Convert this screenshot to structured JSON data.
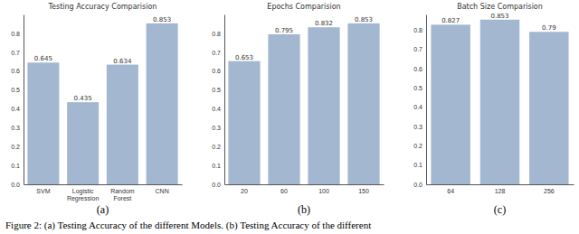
{
  "chart_data": [
    {
      "type": "bar",
      "title": "Testing Accuracy Comparision",
      "label": "(a)",
      "categories": [
        "SVM",
        "Logistic Regression",
        "Random Forest",
        "CNN"
      ],
      "values": [
        0.645,
        0.435,
        0.634,
        0.853
      ],
      "color": "#a3b8d0",
      "ylim": [
        0,
        0.9
      ],
      "yticks": [
        {
          "value": 0,
          "label": "0.0"
        },
        0.1,
        0.2,
        0.3,
        0.4,
        0.5,
        0.6,
        0.7,
        0.8
      ],
      "grid": false,
      "data_labels": true
    },
    {
      "type": "bar",
      "title": "Epochs Comparision",
      "label": "(b)",
      "categories": [
        "20",
        "60",
        "100",
        "150"
      ],
      "values": [
        0.653,
        0.795,
        0.832,
        0.853
      ],
      "color": "#a3b8d0",
      "ylim": [
        0,
        0.9
      ],
      "yticks": [
        {
          "value": 0,
          "label": "0.0"
        },
        0.1,
        0.2,
        0.3,
        0.4,
        0.5,
        0.6,
        0.7,
        0.8
      ],
      "grid": false,
      "data_labels": true
    },
    {
      "type": "bar",
      "title": "Batch Size Comparision",
      "label": "(c)",
      "categories": [
        "64",
        "128",
        "256"
      ],
      "values": [
        0.827,
        0.853,
        0.79
      ],
      "color": "#a3b8d0",
      "ylim": [
        0,
        0.88
      ],
      "yticks": [
        {
          "value": 0,
          "label": "0.0"
        },
        0.1,
        0.2,
        0.3,
        0.4,
        0.5,
        0.6,
        0.7,
        0.8
      ],
      "grid": false,
      "data_labels": true
    }
  ],
  "caption": "Figure 2: (a) Testing Accuracy of the different Models. (b) Testing Accuracy of the different"
}
